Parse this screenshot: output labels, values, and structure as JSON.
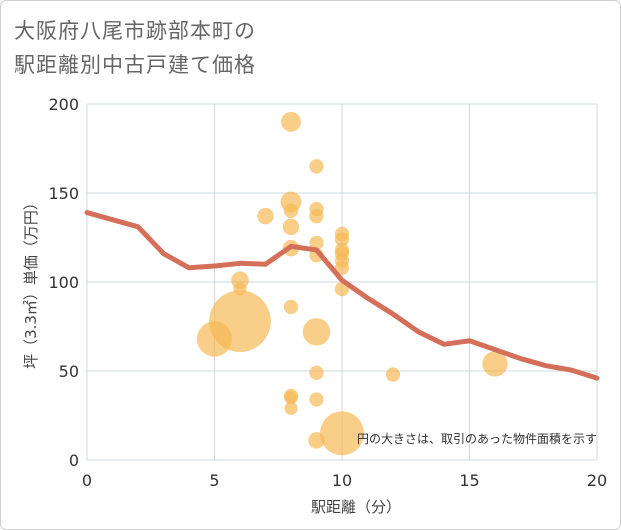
{
  "title_lines": [
    "大阪府八尾市跡部本町の",
    "駅距離別中古戸建て価格"
  ],
  "chart_data": {
    "type": "scatter",
    "title": "大阪府八尾市跡部本町の駅距離別中古戸建て価格",
    "xlabel": "駅距離（分）",
    "ylabel": "坪（3.3㎡）単価（万円）",
    "xlim": [
      0,
      20
    ],
    "ylim": [
      0,
      200
    ],
    "x_ticks": [
      0,
      5,
      10,
      15,
      20
    ],
    "y_ticks": [
      0,
      50,
      100,
      150,
      200
    ],
    "grid": true,
    "note": "円の大きさは、取引のあった物件面積を示す",
    "colors": {
      "bubble": "#f5b955",
      "line": "#d4705a",
      "grid": "#cfd8dc"
    },
    "bubbles": [
      {
        "x": 5,
        "y": 68,
        "size": 3.2
      },
      {
        "x": 6,
        "y": 78,
        "size": 5.6
      },
      {
        "x": 6,
        "y": 101,
        "size": 1.6
      },
      {
        "x": 6,
        "y": 96,
        "size": 1.2
      },
      {
        "x": 7,
        "y": 137,
        "size": 1.5
      },
      {
        "x": 8,
        "y": 190,
        "size": 1.8
      },
      {
        "x": 8,
        "y": 145,
        "size": 1.9
      },
      {
        "x": 8,
        "y": 140,
        "size": 1.3
      },
      {
        "x": 8,
        "y": 131,
        "size": 1.5
      },
      {
        "x": 8,
        "y": 119,
        "size": 1.5
      },
      {
        "x": 8,
        "y": 86,
        "size": 1.3
      },
      {
        "x": 8,
        "y": 36,
        "size": 1.3
      },
      {
        "x": 8,
        "y": 35,
        "size": 1.2
      },
      {
        "x": 8,
        "y": 29,
        "size": 1.2
      },
      {
        "x": 9,
        "y": 165,
        "size": 1.3
      },
      {
        "x": 9,
        "y": 141,
        "size": 1.3
      },
      {
        "x": 9,
        "y": 137,
        "size": 1.3
      },
      {
        "x": 9,
        "y": 122,
        "size": 1.3
      },
      {
        "x": 9,
        "y": 115,
        "size": 1.3
      },
      {
        "x": 9,
        "y": 72,
        "size": 2.5
      },
      {
        "x": 9,
        "y": 49,
        "size": 1.3
      },
      {
        "x": 9,
        "y": 34,
        "size": 1.3
      },
      {
        "x": 9,
        "y": 11,
        "size": 1.5
      },
      {
        "x": 10,
        "y": 127,
        "size": 1.3
      },
      {
        "x": 10,
        "y": 124,
        "size": 1.3
      },
      {
        "x": 10,
        "y": 118,
        "size": 1.3
      },
      {
        "x": 10,
        "y": 116,
        "size": 1.3
      },
      {
        "x": 10,
        "y": 112,
        "size": 1.3
      },
      {
        "x": 10,
        "y": 108,
        "size": 1.3
      },
      {
        "x": 10,
        "y": 96,
        "size": 1.3
      },
      {
        "x": 10,
        "y": 15,
        "size": 4.0
      },
      {
        "x": 12,
        "y": 48,
        "size": 1.3
      },
      {
        "x": 16,
        "y": 54,
        "size": 2.3
      }
    ],
    "trend_line": {
      "x": [
        0,
        1,
        2,
        3,
        4,
        5,
        6,
        7,
        8,
        9,
        10,
        11,
        12,
        13,
        14,
        15,
        16,
        17,
        18,
        19,
        20
      ],
      "y": [
        139,
        135,
        131,
        116,
        108,
        109,
        110.5,
        110,
        120,
        118,
        101,
        91,
        82,
        72,
        65,
        67,
        62,
        57,
        53,
        50.5,
        46
      ]
    }
  }
}
